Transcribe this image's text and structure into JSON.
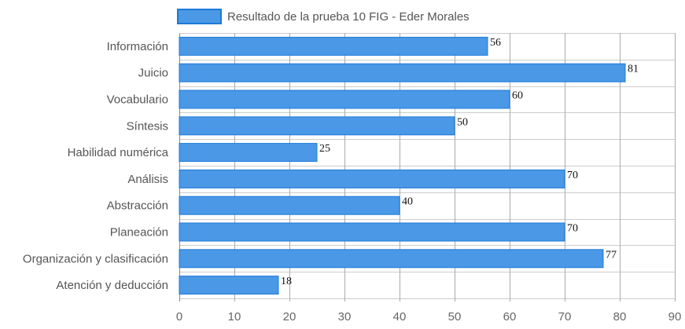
{
  "chart_data": {
    "type": "bar",
    "orientation": "horizontal",
    "categories": [
      "Información",
      "Juicio",
      "Vocabulario",
      "Síntesis",
      "Habilidad numérica",
      "Análisis",
      "Abstracción",
      "Planeación",
      "Organización y clasificación",
      "Atención y deducción"
    ],
    "series": [
      {
        "name": "Resultado de la prueba 10 FIG - Eder Morales",
        "values": [
          56,
          81,
          60,
          50,
          25,
          70,
          40,
          70,
          77,
          18
        ],
        "color": "#4a98e6",
        "border_color": "#1e7ad8"
      }
    ],
    "xlim": [
      0,
      90
    ],
    "x_ticks": [
      0,
      10,
      20,
      30,
      40,
      50,
      60,
      70,
      80,
      90
    ],
    "grid": true,
    "legend": "top-center",
    "show_data_labels": true,
    "grid_color": "#cccccc",
    "major_grid_color": "#aaaaaa"
  }
}
